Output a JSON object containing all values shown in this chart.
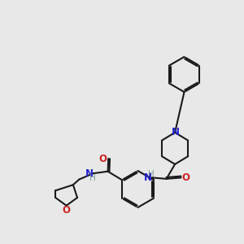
{
  "bg_color": "#e8e8e8",
  "bond_color": "#1a1a1a",
  "n_color": "#2222cc",
  "o_color": "#cc2222",
  "h_color": "#7a9a9a",
  "line_width": 1.5,
  "figsize": [
    3.0,
    3.0
  ],
  "dpi": 100,
  "xlim": [
    0,
    10
  ],
  "ylim": [
    0,
    10
  ]
}
